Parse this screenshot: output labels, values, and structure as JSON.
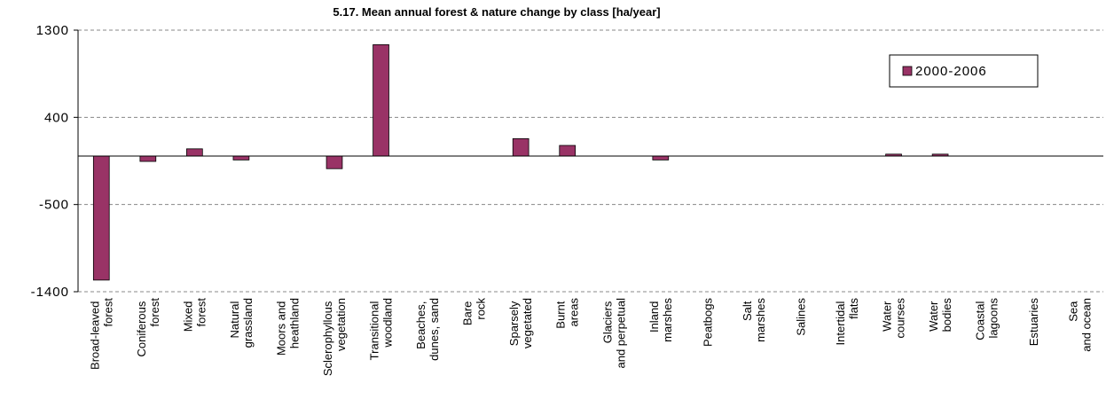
{
  "chart_data": {
    "type": "bar",
    "title": "5.17. Mean annual forest & nature change by class [ha/year]",
    "categories": [
      "Broad-leaved forest",
      "Coniferous forest",
      "Mixed forest",
      "Natural grassland",
      "Moors and heathland",
      "Sclerophyllous vegetation",
      "Transitional woodland",
      "Beaches, dunes, sand",
      "Bare rock",
      "Sparsely vegetated",
      "Burnt areas",
      "Glaciers and perpetual",
      "Inland marshes",
      "Peatbogs",
      "Salt marshes",
      "Salines",
      "Intertidal flats",
      "Water courses",
      "Water bodies",
      "Coastal lagoons",
      "Estuaries",
      "Sea and ocean"
    ],
    "series": [
      {
        "name": "2000-2006",
        "color": "#993366",
        "values": [
          -1280,
          -55,
          75,
          -40,
          0,
          -130,
          1150,
          0,
          0,
          180,
          110,
          0,
          -40,
          0,
          0,
          0,
          0,
          20,
          20,
          0,
          0,
          0
        ]
      }
    ],
    "ylim": [
      -1400,
      1300
    ],
    "yticks": [
      1300,
      400,
      -500,
      -1400
    ],
    "grid": true,
    "legend": "upper right"
  }
}
